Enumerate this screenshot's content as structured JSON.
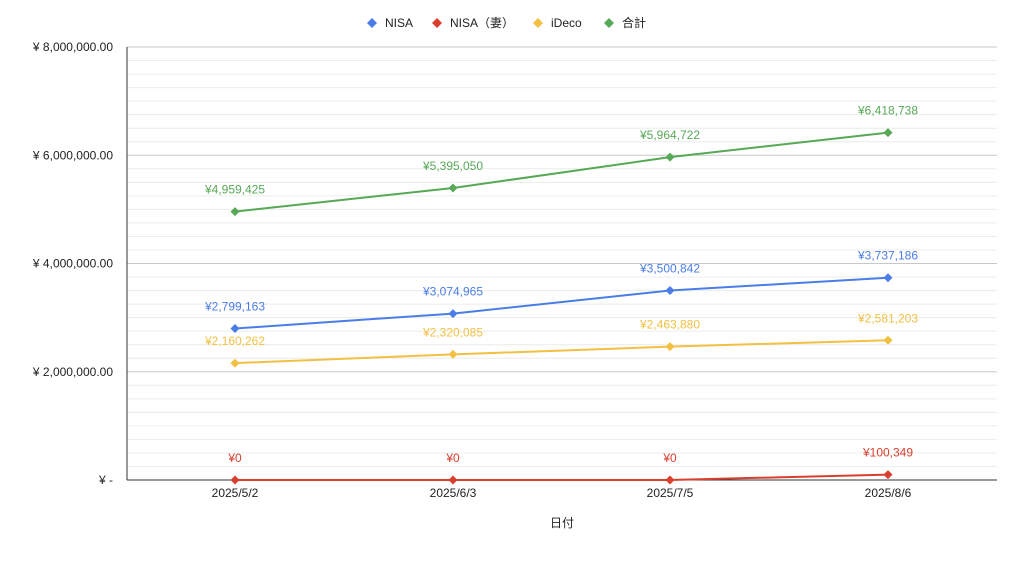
{
  "chart_data": {
    "type": "line",
    "title": "",
    "xlabel": "日付",
    "ylabel": "",
    "categories": [
      "2025/5/2",
      "2025/6/3",
      "2025/7/5",
      "2025/8/6"
    ],
    "ylim": [
      0,
      8000000
    ],
    "y_ticks": [
      {
        "value": 0,
        "label": "¥ -"
      },
      {
        "value": 2000000,
        "label": "¥ 2,000,000.00"
      },
      {
        "value": 4000000,
        "label": "¥ 4,000,000.00"
      },
      {
        "value": 6000000,
        "label": "¥ 6,000,000.00"
      },
      {
        "value": 8000000,
        "label": "¥ 8,000,000.00"
      }
    ],
    "grid": true,
    "legend_position": "top",
    "series": [
      {
        "name": "NISA",
        "color": "#4a7de8",
        "values": [
          2799163,
          3074965,
          3500842,
          3737186
        ],
        "labels": [
          "¥2,799,163",
          "¥3,074,965",
          "¥3,500,842",
          "¥3,737,186"
        ]
      },
      {
        "name": "NISA（妻）",
        "color": "#d93f2f",
        "values": [
          0,
          0,
          0,
          100349
        ],
        "labels": [
          "¥0",
          "¥0",
          "¥0",
          "¥100,349"
        ]
      },
      {
        "name": "iDeco",
        "color": "#f2c043",
        "values": [
          2160262,
          2320085,
          2463880,
          2581203
        ],
        "labels": [
          "¥2,160,262",
          "¥2,320,085",
          "¥2,463,880",
          "¥2,581,203"
        ]
      },
      {
        "name": "合計",
        "color": "#57a857",
        "values": [
          4959425,
          5395050,
          5964722,
          6418738
        ],
        "labels": [
          "¥4,959,425",
          "¥5,395,050",
          "¥5,964,722",
          "¥6,418,738"
        ]
      }
    ]
  }
}
